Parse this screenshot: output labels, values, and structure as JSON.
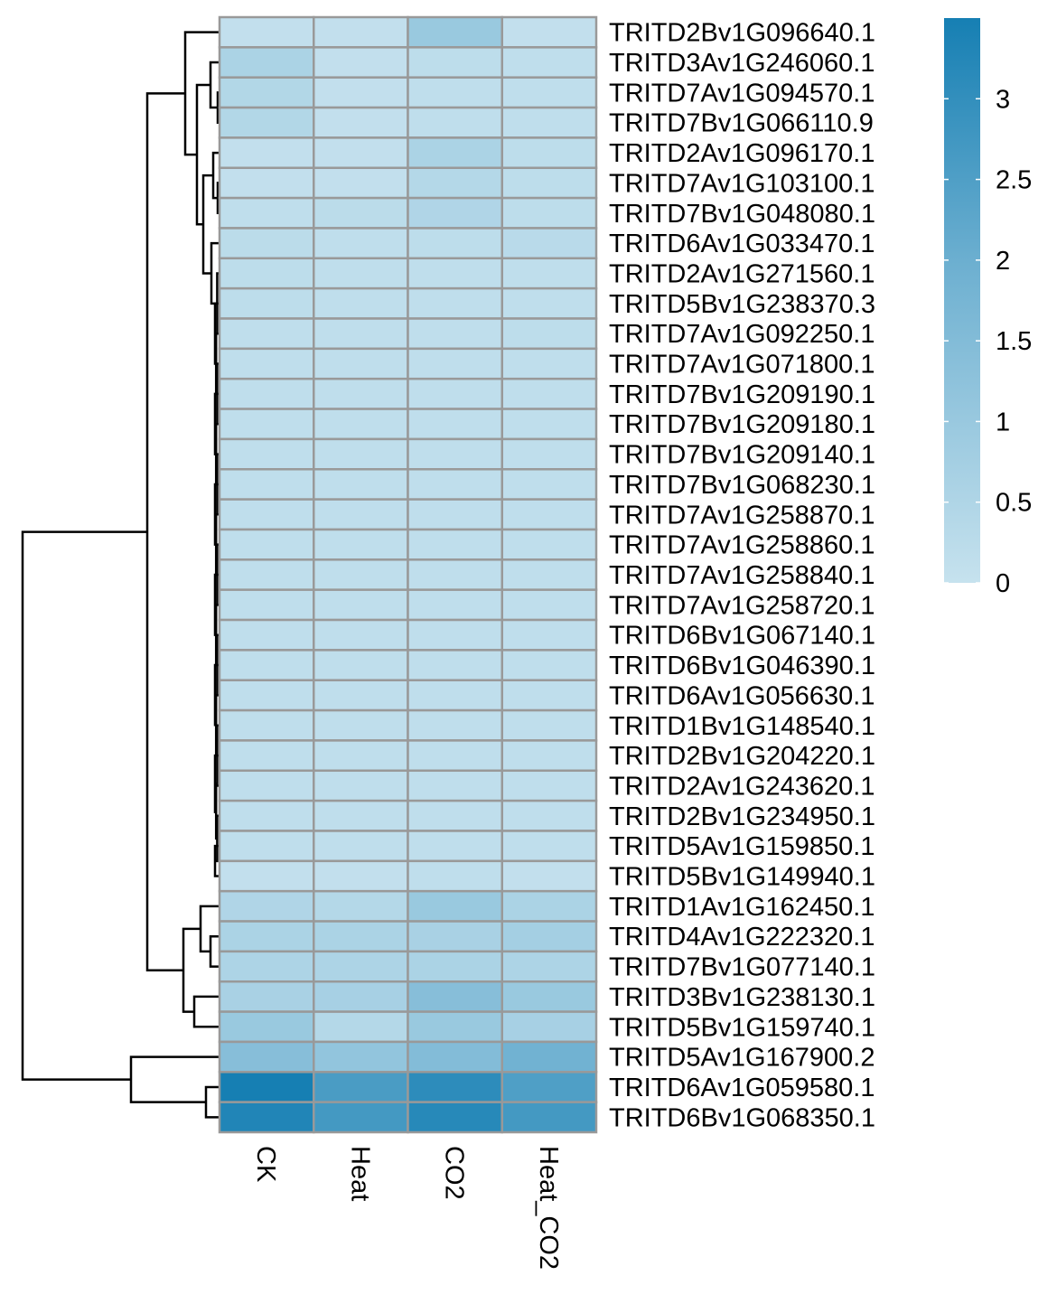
{
  "chart_data": {
    "type": "heatmap",
    "title": "",
    "columns": [
      "CK",
      "Heat",
      "CO2",
      "Heat_CO2"
    ],
    "rows": [
      {
        "name": "TRITD2Bv1G096640.1",
        "values": [
          0.1,
          0.1,
          1.0,
          0.1
        ]
      },
      {
        "name": "TRITD3Av1G246060.1",
        "values": [
          0.6,
          0.1,
          0.2,
          0.15
        ]
      },
      {
        "name": "TRITD7Av1G094570.1",
        "values": [
          0.45,
          0.1,
          0.15,
          0.15
        ]
      },
      {
        "name": "TRITD7Bv1G066110.9",
        "values": [
          0.45,
          0.1,
          0.15,
          0.15
        ]
      },
      {
        "name": "TRITD2Av1G096170.1",
        "values": [
          0.1,
          0.1,
          0.6,
          0.2
        ]
      },
      {
        "name": "TRITD7Av1G103100.1",
        "values": [
          0.1,
          0.1,
          0.4,
          0.2
        ]
      },
      {
        "name": "TRITD7Bv1G048080.1",
        "values": [
          0.15,
          0.25,
          0.5,
          0.2
        ]
      },
      {
        "name": "TRITD6Av1G033470.1",
        "values": [
          0.25,
          0.15,
          0.2,
          0.3
        ]
      },
      {
        "name": "TRITD2Av1G271560.1",
        "values": [
          0.2,
          0.15,
          0.15,
          0.15
        ]
      },
      {
        "name": "TRITD5Bv1G238370.3",
        "values": [
          0.2,
          0.15,
          0.15,
          0.15
        ]
      },
      {
        "name": "TRITD7Av1G092250.1",
        "values": [
          0.15,
          0.15,
          0.15,
          0.2
        ]
      },
      {
        "name": "TRITD7Av1G071800.1",
        "values": [
          0.15,
          0.15,
          0.15,
          0.15
        ]
      },
      {
        "name": "TRITD7Bv1G209190.1",
        "values": [
          0.15,
          0.15,
          0.15,
          0.15
        ]
      },
      {
        "name": "TRITD7Bv1G209180.1",
        "values": [
          0.15,
          0.15,
          0.15,
          0.15
        ]
      },
      {
        "name": "TRITD7Bv1G209140.1",
        "values": [
          0.15,
          0.15,
          0.15,
          0.15
        ]
      },
      {
        "name": "TRITD7Bv1G068230.1",
        "values": [
          0.15,
          0.15,
          0.15,
          0.15
        ]
      },
      {
        "name": "TRITD7Av1G258870.1",
        "values": [
          0.15,
          0.15,
          0.15,
          0.15
        ]
      },
      {
        "name": "TRITD7Av1G258860.1",
        "values": [
          0.15,
          0.15,
          0.15,
          0.15
        ]
      },
      {
        "name": "TRITD7Av1G258840.1",
        "values": [
          0.15,
          0.15,
          0.15,
          0.15
        ]
      },
      {
        "name": "TRITD7Av1G258720.1",
        "values": [
          0.15,
          0.15,
          0.15,
          0.15
        ]
      },
      {
        "name": "TRITD6Bv1G067140.1",
        "values": [
          0.15,
          0.15,
          0.15,
          0.15
        ]
      },
      {
        "name": "TRITD6Bv1G046390.1",
        "values": [
          0.15,
          0.15,
          0.15,
          0.15
        ]
      },
      {
        "name": "TRITD6Av1G056630.1",
        "values": [
          0.15,
          0.15,
          0.15,
          0.15
        ]
      },
      {
        "name": "TRITD1Bv1G148540.1",
        "values": [
          0.15,
          0.15,
          0.15,
          0.15
        ]
      },
      {
        "name": "TRITD2Bv1G204220.1",
        "values": [
          0.15,
          0.15,
          0.15,
          0.15
        ]
      },
      {
        "name": "TRITD2Av1G243620.1",
        "values": [
          0.15,
          0.15,
          0.15,
          0.15
        ]
      },
      {
        "name": "TRITD2Bv1G234950.1",
        "values": [
          0.15,
          0.15,
          0.15,
          0.15
        ]
      },
      {
        "name": "TRITD5Av1G159850.1",
        "values": [
          0.15,
          0.15,
          0.15,
          0.15
        ]
      },
      {
        "name": "TRITD5Bv1G149940.1",
        "values": [
          0.1,
          0.1,
          0.15,
          0.1
        ]
      },
      {
        "name": "TRITD1Av1G162450.1",
        "values": [
          0.5,
          0.4,
          1.0,
          0.6
        ]
      },
      {
        "name": "TRITD4Av1G222320.1",
        "values": [
          0.6,
          0.6,
          0.65,
          0.75
        ]
      },
      {
        "name": "TRITD7Bv1G077140.1",
        "values": [
          0.55,
          0.55,
          0.6,
          0.55
        ]
      },
      {
        "name": "TRITD3Bv1G238130.1",
        "values": [
          0.65,
          0.7,
          1.4,
          1.0
        ]
      },
      {
        "name": "TRITD5Bv1G159740.1",
        "values": [
          1.0,
          0.4,
          1.0,
          0.7
        ]
      },
      {
        "name": "TRITD5Av1G167900.2",
        "values": [
          1.4,
          1.15,
          1.5,
          1.9
        ]
      },
      {
        "name": "TRITD6Av1G059580.1",
        "values": [
          3.5,
          2.6,
          3.1,
          2.5
        ]
      },
      {
        "name": "TRITD6Bv1G068350.1",
        "values": [
          3.3,
          2.7,
          3.2,
          2.7
        ]
      }
    ],
    "color_scale": {
      "range": [
        0,
        3.5
      ],
      "ticks": [
        "0",
        "0.5",
        "1",
        "1.5",
        "2",
        "2.5",
        "3"
      ],
      "tick_values": [
        0,
        0.5,
        1,
        1.5,
        2,
        2.5,
        3
      ],
      "colors": [
        "#c6e2ee",
        "#6cafd0",
        "#167fb3"
      ]
    },
    "row_dendrogram": true,
    "legend": "right",
    "cell_border": "#999999"
  }
}
